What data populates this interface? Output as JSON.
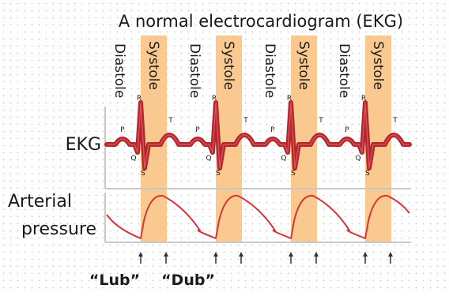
{
  "title": "A normal electrocardiogram (EKG)",
  "labels": {
    "ekg": "EKG",
    "arterial_line1": "Arterial",
    "arterial_line2": "pressure",
    "lub": "“Lub”",
    "dub": "“Dub”"
  },
  "phases": {
    "diastole": "Diastole",
    "systole": "Systole"
  },
  "wave_labels": {
    "p": "P",
    "q": "Q",
    "r": "R",
    "s": "S",
    "t": "T"
  },
  "colors": {
    "systole_band": "#f9c98f",
    "ekg_trace": "#b3262c",
    "ekg_trace_light": "#e0575c",
    "pressure_trace": "#d6343b",
    "axis": "#c8c8c8",
    "sound_marker": "#333333",
    "dot_grid": "#c9c9c9"
  },
  "icons": {
    "sound_marker": "up-arrow-icon"
  }
}
